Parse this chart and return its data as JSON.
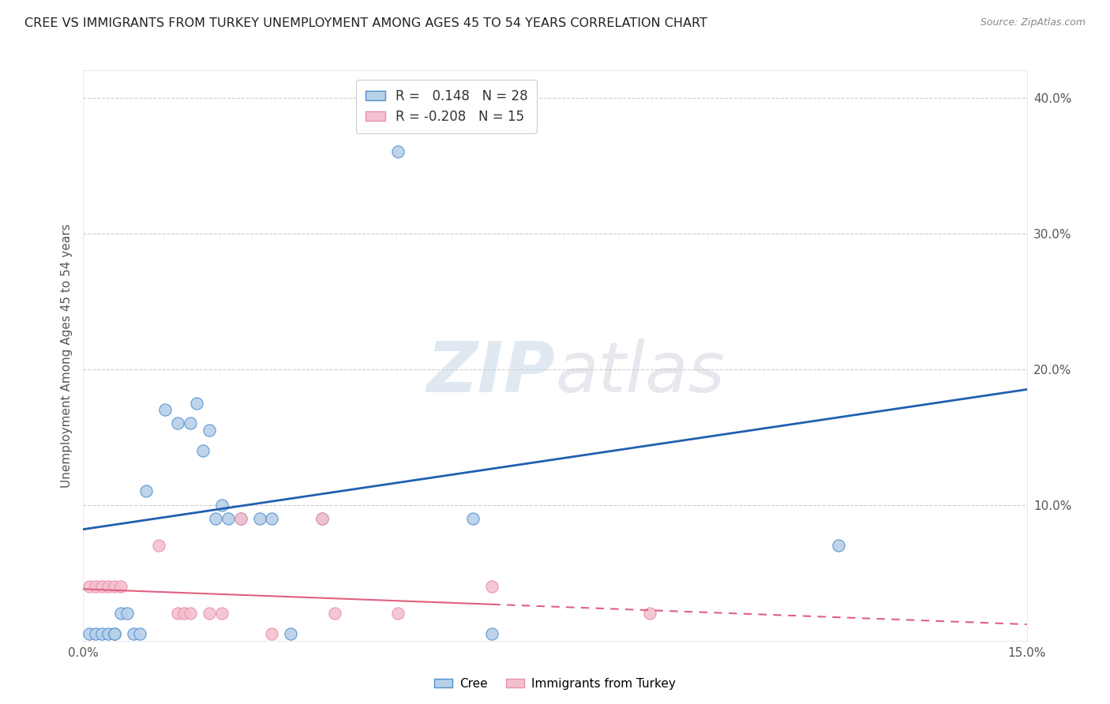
{
  "title": "CREE VS IMMIGRANTS FROM TURKEY UNEMPLOYMENT AMONG AGES 45 TO 54 YEARS CORRELATION CHART",
  "source": "Source: ZipAtlas.com",
  "ylabel": "Unemployment Among Ages 45 to 54 years",
  "xlim": [
    0.0,
    0.15
  ],
  "ylim": [
    0.0,
    0.42
  ],
  "xticks": [
    0.0,
    0.03,
    0.06,
    0.09,
    0.12,
    0.15
  ],
  "yticks": [
    0.1,
    0.2,
    0.3,
    0.4
  ],
  "xtick_labels": [
    "0.0%",
    "",
    "",
    "",
    "",
    "15.0%"
  ],
  "ytick_labels": [
    "10.0%",
    "20.0%",
    "30.0%",
    "40.0%"
  ],
  "cree_points": [
    [
      0.001,
      0.005
    ],
    [
      0.002,
      0.005
    ],
    [
      0.003,
      0.005
    ],
    [
      0.004,
      0.005
    ],
    [
      0.005,
      0.005
    ],
    [
      0.005,
      0.005
    ],
    [
      0.006,
      0.02
    ],
    [
      0.007,
      0.02
    ],
    [
      0.008,
      0.005
    ],
    [
      0.009,
      0.005
    ],
    [
      0.01,
      0.11
    ],
    [
      0.013,
      0.17
    ],
    [
      0.015,
      0.16
    ],
    [
      0.017,
      0.16
    ],
    [
      0.018,
      0.175
    ],
    [
      0.019,
      0.14
    ],
    [
      0.02,
      0.155
    ],
    [
      0.021,
      0.09
    ],
    [
      0.022,
      0.1
    ],
    [
      0.023,
      0.09
    ],
    [
      0.025,
      0.09
    ],
    [
      0.028,
      0.09
    ],
    [
      0.03,
      0.09
    ],
    [
      0.033,
      0.005
    ],
    [
      0.038,
      0.09
    ],
    [
      0.05,
      0.36
    ],
    [
      0.062,
      0.09
    ],
    [
      0.065,
      0.005
    ],
    [
      0.12,
      0.07
    ]
  ],
  "turkey_points": [
    [
      0.001,
      0.04
    ],
    [
      0.002,
      0.04
    ],
    [
      0.003,
      0.04
    ],
    [
      0.004,
      0.04
    ],
    [
      0.005,
      0.04
    ],
    [
      0.006,
      0.04
    ],
    [
      0.012,
      0.07
    ],
    [
      0.015,
      0.02
    ],
    [
      0.016,
      0.02
    ],
    [
      0.017,
      0.02
    ],
    [
      0.02,
      0.02
    ],
    [
      0.022,
      0.02
    ],
    [
      0.025,
      0.09
    ],
    [
      0.03,
      0.005
    ],
    [
      0.038,
      0.09
    ],
    [
      0.04,
      0.02
    ],
    [
      0.05,
      0.02
    ],
    [
      0.065,
      0.04
    ],
    [
      0.09,
      0.02
    ]
  ],
  "cree_line_y0": 0.082,
  "cree_line_y1": 0.185,
  "turkey_line_y0": 0.038,
  "turkey_line_y1": 0.012,
  "cree_line_color": "#2060b0",
  "turkey_line_color": "#e06080",
  "background_color": "#ffffff",
  "watermark_zip": "ZIP",
  "watermark_atlas": "atlas",
  "marker_size": 120,
  "cree_marker_color": "#b8d0e8",
  "turkey_marker_color": "#f4c0d0",
  "cree_marker_edge": "#5090d0",
  "turkey_marker_edge": "#e890a8"
}
